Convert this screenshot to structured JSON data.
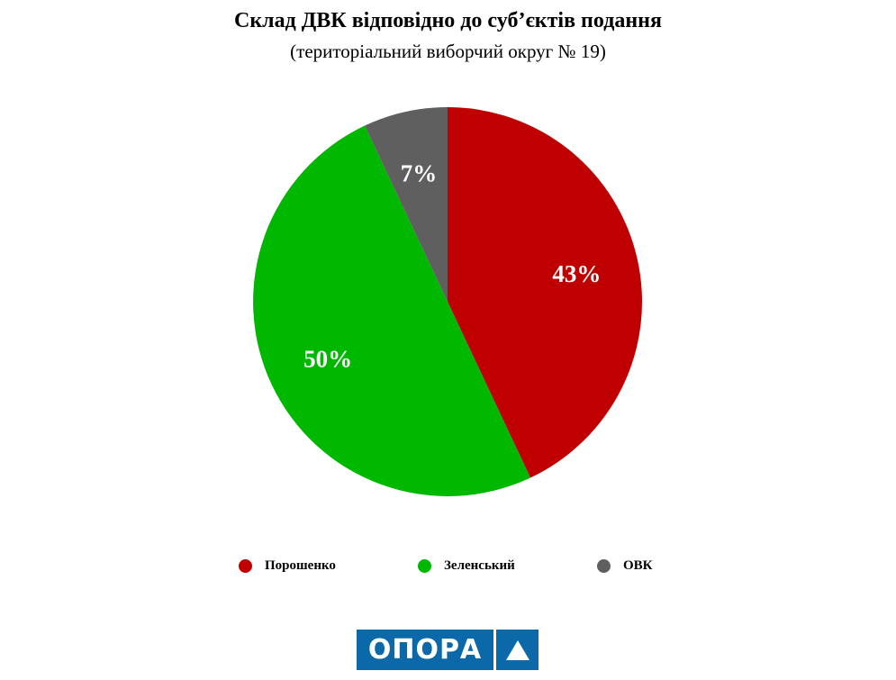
{
  "chart_data": {
    "type": "pie",
    "title": "Склад ДВК відповідно до суб’єктів подання",
    "subtitle": "(територіальний виборчий округ № 19)",
    "categories": [
      "Порошенко",
      "Зеленський",
      "ОВК"
    ],
    "values": [
      43,
      50,
      7
    ],
    "labels": [
      "43%",
      "50%",
      "7%"
    ],
    "colors": [
      "#c00000",
      "#00b800",
      "#5f5f5f"
    ],
    "legend_position": "bottom"
  },
  "logo": {
    "text": "ОПОРА",
    "color": "#0b69a9"
  }
}
